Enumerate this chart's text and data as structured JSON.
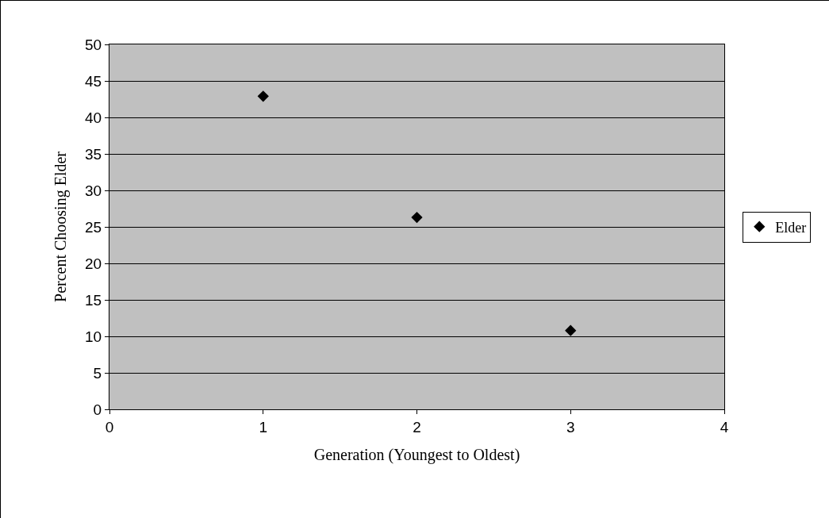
{
  "chart_data": {
    "type": "scatter",
    "xlabel": "Generation (Youngest to Oldest)",
    "ylabel": "Percent Choosing Elder",
    "x": [
      1,
      2,
      3
    ],
    "series": [
      {
        "name": "Elder",
        "color": "#000000",
        "values": [
          42.9,
          26.3,
          10.8
        ]
      }
    ],
    "xlim": [
      0,
      4
    ],
    "xticks": [
      0,
      1,
      2,
      3,
      4
    ],
    "ylim": [
      0,
      50
    ],
    "yticks": [
      0,
      5,
      10,
      15,
      20,
      25,
      30,
      35,
      40,
      45,
      50
    ],
    "grid": "y",
    "legend": "right",
    "marker": "diamond"
  }
}
